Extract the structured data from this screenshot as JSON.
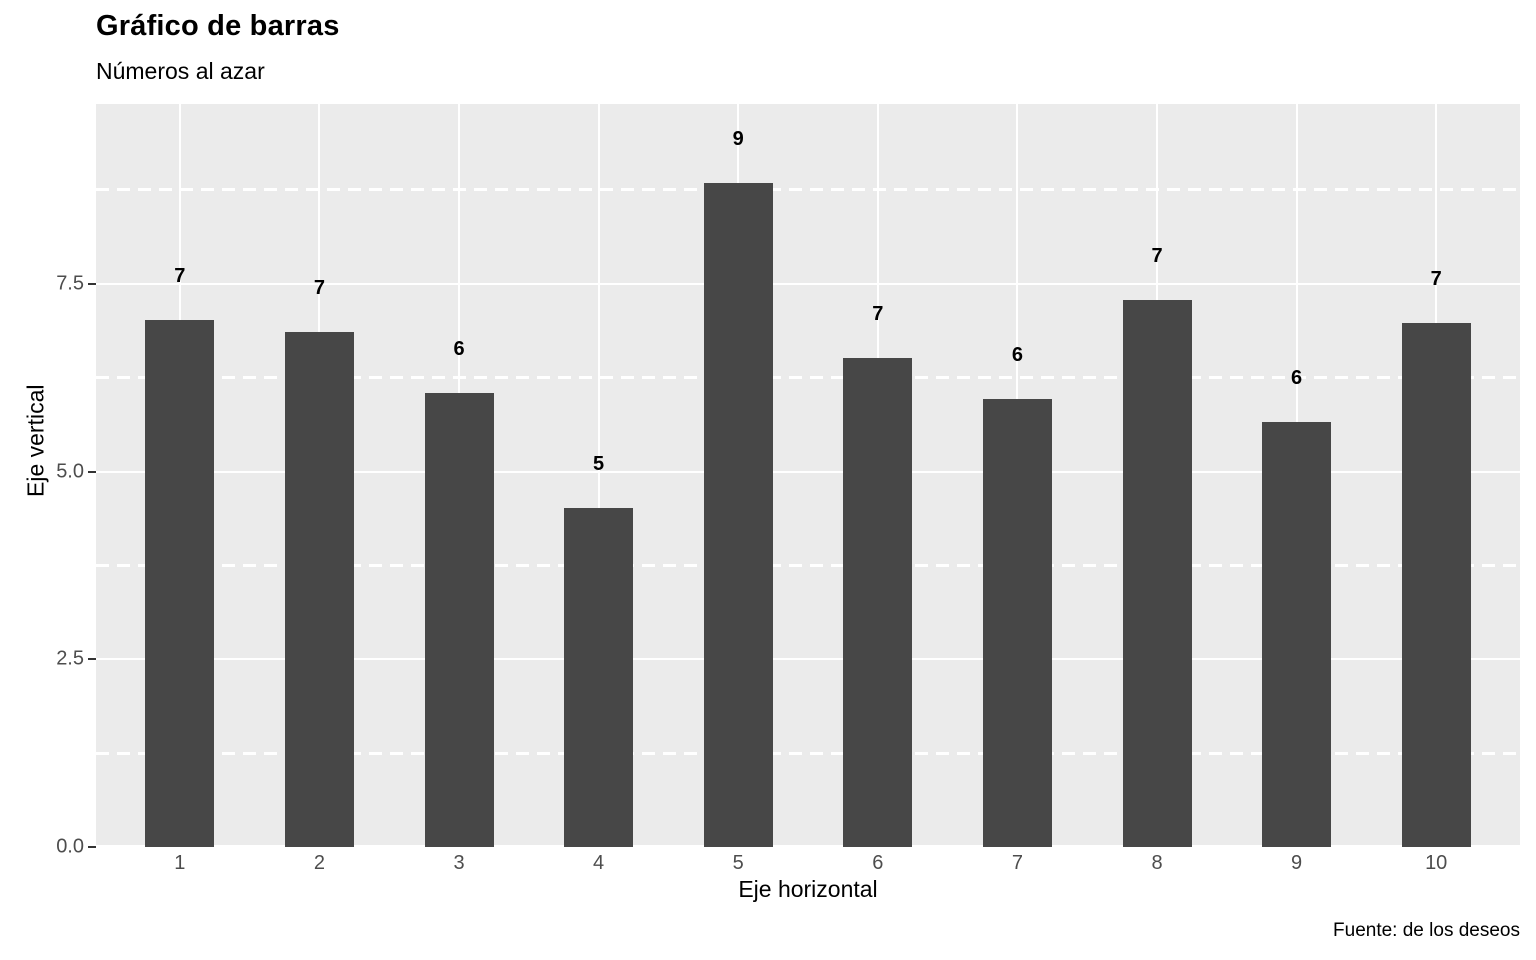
{
  "header": {
    "title": "Gráfico de barras",
    "subtitle": "Números al azar"
  },
  "caption": "Fuente: de los deseos",
  "colors": {
    "bar_fill": "#474747",
    "panel_background": "#EBEBEB",
    "gridline": "#FFFFFF",
    "tick_text": "#4D4D4D",
    "tick_mark": "#333333",
    "text": "#000000",
    "page_background": "#FFFFFF"
  },
  "chart_data": {
    "type": "bar",
    "title": "Gráfico de barras",
    "subtitle": "Números al azar",
    "xlabel": "Eje horizontal",
    "ylabel": "Eje vertical",
    "caption": "Fuente: de los deseos",
    "categories": [
      "1",
      "2",
      "3",
      "4",
      "5",
      "6",
      "7",
      "8",
      "9",
      "10"
    ],
    "values": [
      7.02,
      6.86,
      6.05,
      4.52,
      8.84,
      6.51,
      5.97,
      7.29,
      5.66,
      6.98
    ],
    "bar_labels": [
      "7",
      "7",
      "6",
      "5",
      "9",
      "7",
      "6",
      "7",
      "6",
      "7"
    ],
    "ylim": [
      0,
      9.89
    ],
    "yticks": [
      0.0,
      2.5,
      5.0,
      7.5
    ],
    "ytick_labels": [
      "0.0",
      "2.5",
      "5.0",
      "7.5"
    ],
    "yticks_minor": [
      1.25,
      3.75,
      6.25,
      8.75
    ],
    "grid": "horizontal major solid white, horizontal minor dashed white, vertical solid white at bar centers",
    "legend_position": "none",
    "bar_color": "#474747"
  }
}
